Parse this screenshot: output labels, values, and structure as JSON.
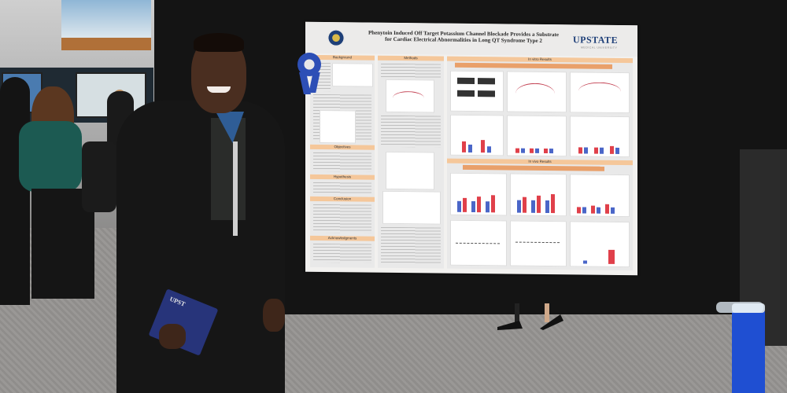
{
  "poster": {
    "title_line1": "Phenytoin Induced Off Target Potassium Channel Blockade Provides a Substrate",
    "title_line2": "for Cardiac Electrical Abnormalities in Long QT Syndrome Type 2",
    "logo_text": "UPSTATE",
    "logo_subtext": "MEDICAL UNIVERSITY",
    "sections": {
      "background": "Background",
      "methods": "Methods",
      "invitro": "In vitro Results",
      "objectives": "Objectives",
      "hypothesis": "Hypothesis",
      "conclusion": "Conclusion",
      "acknowledgments": "Acknowledgments",
      "invivo": "In vivo Results"
    }
  },
  "folder": {
    "text": "UPST"
  },
  "colors": {
    "booth": "#141414",
    "poster_bg": "#f2f1ef",
    "accent_blue": "#1e3f78",
    "section_orange": "#f5c79a",
    "ribbon": "#2d4fb6",
    "bar_red": "#e0404a",
    "bar_blue": "#4a66c8"
  }
}
